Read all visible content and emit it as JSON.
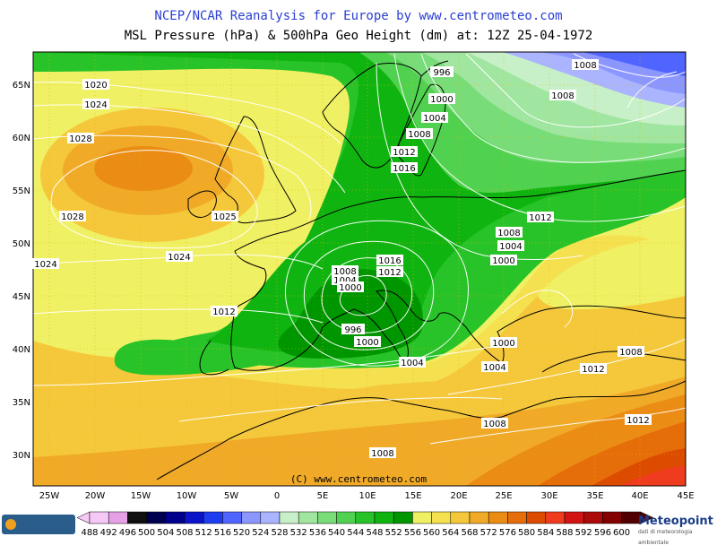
{
  "header": {
    "title": "NCEP/NCAR Reanalysis for Europe by www.centrometeo.com",
    "subtitle": "MSL Pressure (hPa) & 500hPa Geo Height (dm) at: 12Z 25-04-1972"
  },
  "map": {
    "copyright": "(C) www.centrometeo.com",
    "lat_labels": [
      "65N",
      "60N",
      "55N",
      "50N",
      "45N",
      "40N",
      "35N",
      "30N"
    ],
    "lon_labels": [
      "25W",
      "20W",
      "15W",
      "10W",
      "5W",
      "0",
      "5E",
      "10E",
      "15E",
      "20E",
      "25E",
      "30E",
      "35E",
      "40E",
      "45E"
    ],
    "isobar_labels": [
      "1020",
      "1024",
      "1028",
      "1028",
      "1025",
      "1024",
      "1024",
      "996",
      "1000",
      "1004",
      "1008",
      "1012",
      "1016",
      "1008",
      "1008",
      "1008",
      "1012",
      "1008",
      "1004",
      "1000",
      "1008",
      "1004",
      "1000",
      "1016",
      "1012",
      "1012",
      "996",
      "1000",
      "1004",
      "1000",
      "1004",
      "1008",
      "1012",
      "1012",
      "1008",
      "1008"
    ]
  },
  "legend": {
    "values": [
      "488",
      "492",
      "496",
      "500",
      "504",
      "508",
      "512",
      "516",
      "520",
      "524",
      "528",
      "532",
      "536",
      "540",
      "544",
      "548",
      "552",
      "556",
      "560",
      "564",
      "568",
      "572",
      "576",
      "580",
      "584",
      "588",
      "592",
      "596",
      "600"
    ],
    "colors": [
      "#f5c8f5",
      "#e6a0e6",
      "#101010",
      "#000050",
      "#00008c",
      "#0a14c8",
      "#1e3cf0",
      "#5064ff",
      "#8c96ff",
      "#aab4ff",
      "#c8f0c8",
      "#a0e6a0",
      "#78dc78",
      "#50d250",
      "#28c328",
      "#10b410",
      "#009600",
      "#f0f064",
      "#f5e150",
      "#f5c83c",
      "#f0aa28",
      "#eb8c14",
      "#e66e0a",
      "#dc4b00",
      "#f03c1e",
      "#d21414",
      "#aa0a0a",
      "#820000",
      "#500000"
    ],
    "left_logo": "centrometeo",
    "right_logo": "Meteopoint",
    "right_logo_sub": "dati di meteorologia ambientale"
  }
}
